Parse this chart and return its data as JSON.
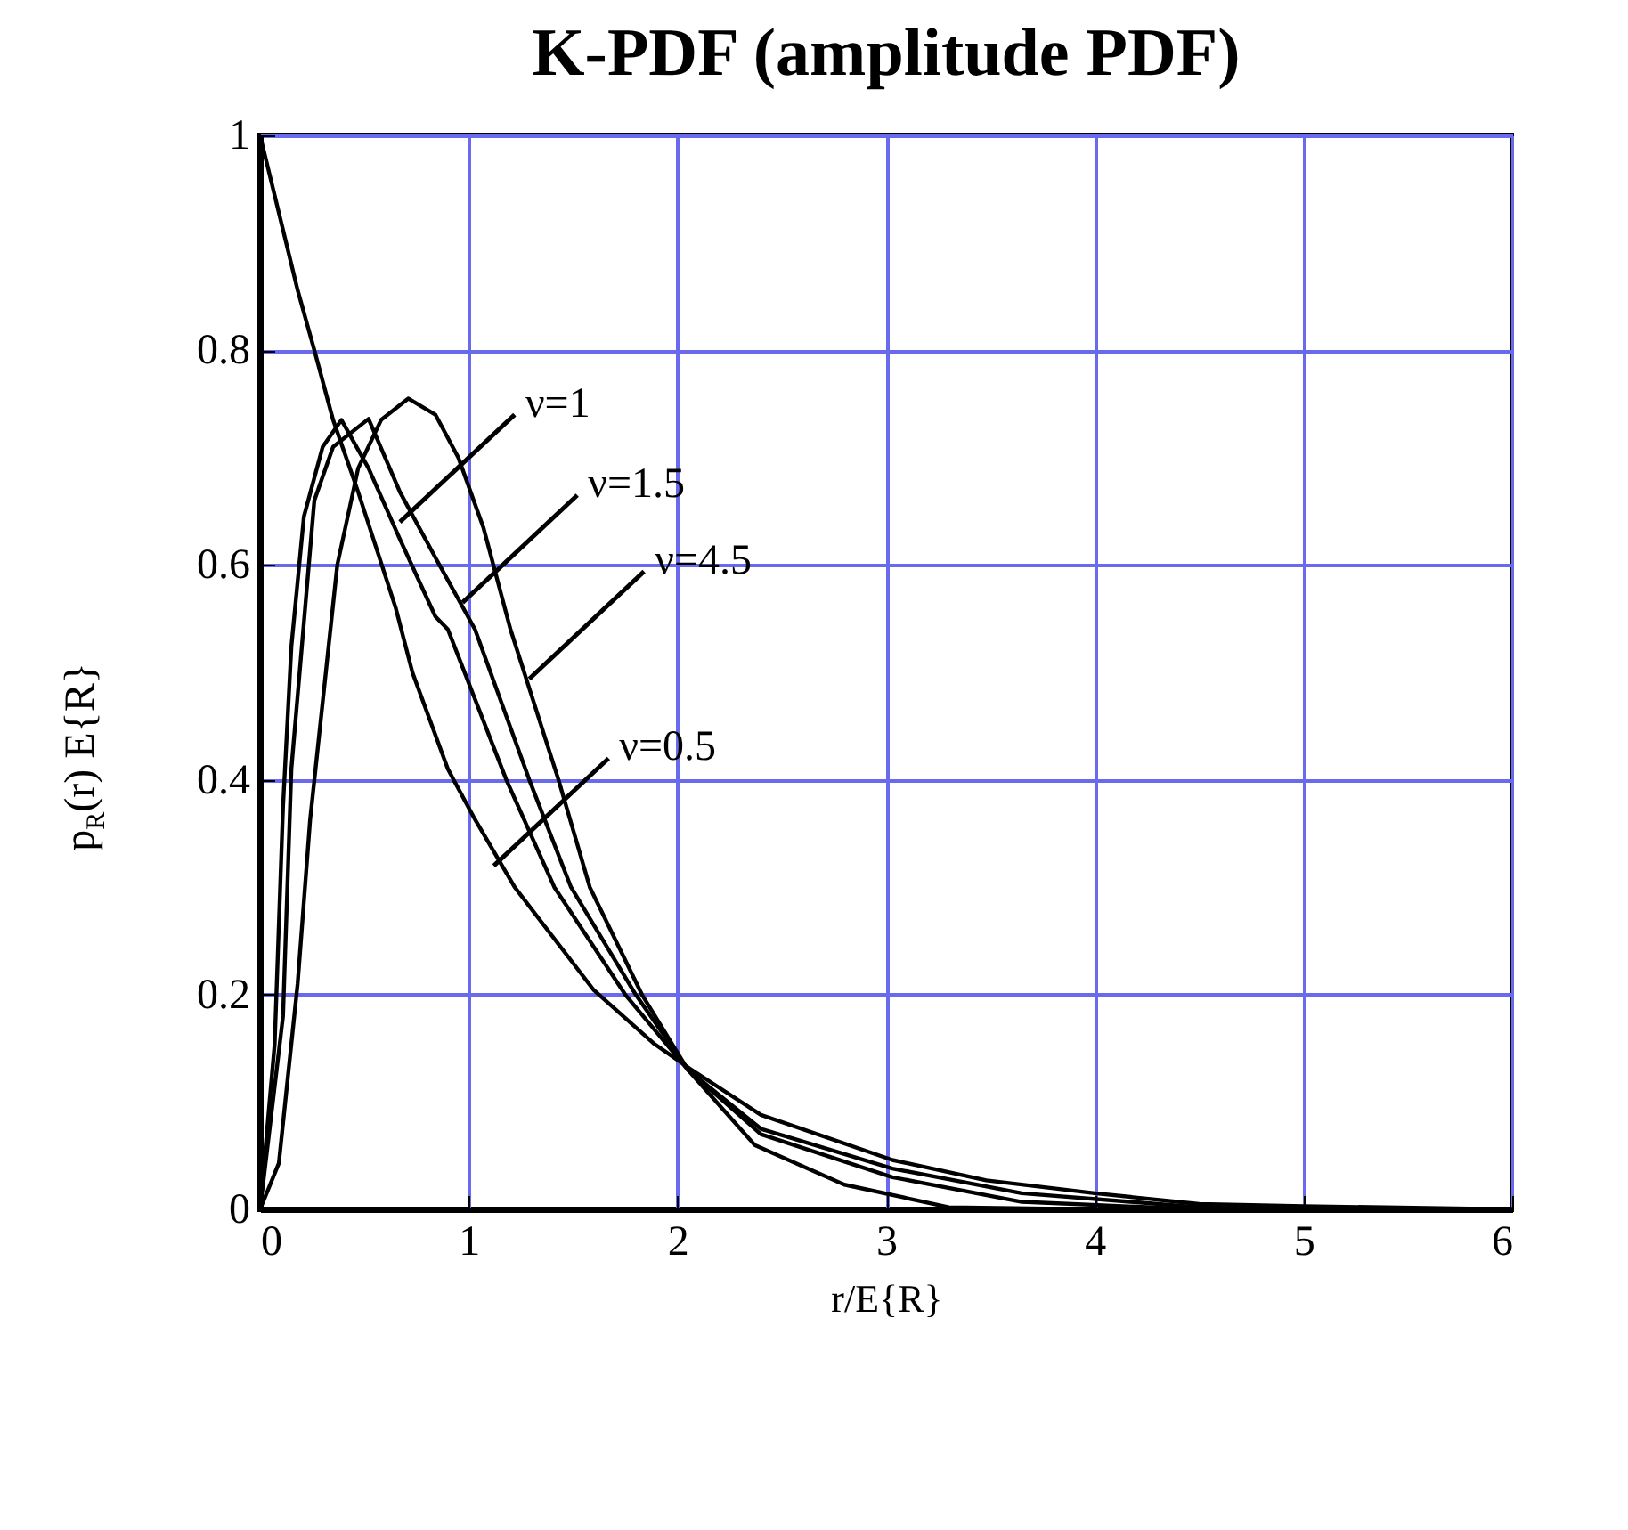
{
  "chart_data": {
    "type": "line",
    "title": "K-PDF (amplitude PDF)",
    "xlabel": "r/E{R}",
    "ylabel": "p$_{R}$(r) E{R}",
    "series": [
      {
        "color": "#000000",
        "x": [
          0,
          0.18,
          0.26,
          0.35,
          0.47,
          0.65,
          0.73,
          0.9,
          1.03,
          1.22,
          1.6,
          1.89,
          2.06,
          2.4,
          3.03,
          3.48,
          4.0,
          4.5,
          5.0,
          6.0
        ],
        "values": [
          1,
          0.856,
          0.8,
          0.735,
          0.668,
          0.56,
          0.5,
          0.41,
          0.363,
          0.3,
          0.204,
          0.154,
          0.131,
          0.088,
          0.046,
          0.027,
          0.015,
          0.005,
          0.003,
          0
        ]
      },
      {
        "color": "#000000",
        "x": [
          0,
          0.07,
          0.11,
          0.15,
          0.21,
          0.3,
          0.39,
          0.52,
          0.67,
          0.84,
          0.9,
          1.18,
          1.41,
          1.75,
          2.05,
          2.4,
          3.03,
          3.65,
          4.5,
          5.0,
          6.0
        ],
        "values": [
          0,
          0.154,
          0.375,
          0.524,
          0.645,
          0.71,
          0.735,
          0.69,
          0.624,
          0.552,
          0.54,
          0.4,
          0.3,
          0.2,
          0.13,
          0.075,
          0.038,
          0.015,
          0.002,
          0,
          0
        ]
      },
      {
        "color": "#000000",
        "x": [
          0,
          0.11,
          0.15,
          0.26,
          0.35,
          0.52,
          0.67,
          0.84,
          1.03,
          1.29,
          1.49,
          1.8,
          2.05,
          2.4,
          3.03,
          3.65,
          4.5,
          6.0
        ],
        "values": [
          0,
          0.18,
          0.41,
          0.66,
          0.71,
          0.736,
          0.668,
          0.607,
          0.54,
          0.4,
          0.3,
          0.2,
          0.13,
          0.07,
          0.03,
          0.007,
          0,
          0
        ]
      },
      {
        "color": "#000000",
        "x": [
          0,
          0.09,
          0.18,
          0.24,
          0.37,
          0.47,
          0.58,
          0.71,
          0.84,
          0.95,
          1.07,
          1.2,
          1.43,
          1.58,
          1.83,
          2.05,
          2.37,
          2.8,
          3.3,
          4.0,
          6.0
        ],
        "values": [
          0,
          0.043,
          0.21,
          0.363,
          0.6,
          0.69,
          0.735,
          0.755,
          0.74,
          0.7,
          0.635,
          0.54,
          0.4,
          0.3,
          0.2,
          0.13,
          0.06,
          0.023,
          0.002,
          0,
          0
        ]
      }
    ],
    "annotations": [
      {
        "text": "ν=1",
        "x": 0.67,
        "y": 0.64
      },
      {
        "text": "ν=1.5",
        "x": 0.97,
        "y": 0.565
      },
      {
        "text": "ν=4.5",
        "x": 1.29,
        "y": 0.494
      },
      {
        "text": "ν=0.5",
        "x": 1.12,
        "y": 0.32
      }
    ],
    "xlim": [
      0,
      6
    ],
    "xticks": [
      0,
      1,
      2,
      3,
      4,
      5,
      6
    ],
    "ylim": [
      0,
      1
    ],
    "yticks": [
      0,
      0.2,
      0.4,
      0.6,
      0.8,
      1
    ],
    "grid": true
  }
}
